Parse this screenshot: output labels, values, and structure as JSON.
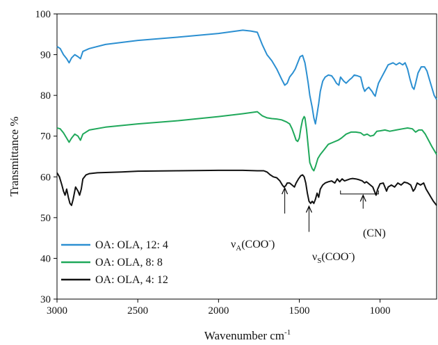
{
  "chart_data": {
    "type": "line",
    "title": "",
    "xlabel": "Wavenumber cm",
    "xlabel_superscript": "-1",
    "ylabel": "Transmittance %",
    "xlim": [
      3000,
      650
    ],
    "ylim": [
      30,
      100
    ],
    "x_ticks": [
      3000,
      2500,
      2000,
      1500,
      1000
    ],
    "y_ticks": [
      30,
      40,
      50,
      60,
      70,
      80,
      90,
      100
    ],
    "grid": false,
    "legend_position": "bottom-left",
    "series": [
      {
        "name": "OA: OLA, 12: 4",
        "color": "#2b8fd1",
        "points": [
          [
            3000,
            92
          ],
          [
            2980,
            91.5
          ],
          [
            2960,
            90
          ],
          [
            2940,
            89
          ],
          [
            2925,
            88
          ],
          [
            2910,
            89.2
          ],
          [
            2890,
            90
          ],
          [
            2870,
            89.5
          ],
          [
            2855,
            89
          ],
          [
            2840,
            90.8
          ],
          [
            2800,
            91.5
          ],
          [
            2700,
            92.5
          ],
          [
            2500,
            93.5
          ],
          [
            2250,
            94.3
          ],
          [
            2000,
            95.2
          ],
          [
            1850,
            96
          ],
          [
            1800,
            95.8
          ],
          [
            1760,
            95.5
          ],
          [
            1730,
            92.5
          ],
          [
            1700,
            90
          ],
          [
            1670,
            88.5
          ],
          [
            1640,
            86.5
          ],
          [
            1610,
            84
          ],
          [
            1590,
            82.5
          ],
          [
            1575,
            83
          ],
          [
            1560,
            84.5
          ],
          [
            1540,
            85.5
          ],
          [
            1525,
            86.5
          ],
          [
            1510,
            88
          ],
          [
            1495,
            89.5
          ],
          [
            1480,
            89.8
          ],
          [
            1465,
            88
          ],
          [
            1455,
            85.5
          ],
          [
            1445,
            83
          ],
          [
            1435,
            80
          ],
          [
            1420,
            77
          ],
          [
            1410,
            74.5
          ],
          [
            1400,
            73
          ],
          [
            1390,
            75.5
          ],
          [
            1380,
            78
          ],
          [
            1370,
            81
          ],
          [
            1355,
            83.5
          ],
          [
            1340,
            84.5
          ],
          [
            1320,
            85
          ],
          [
            1300,
            84.8
          ],
          [
            1285,
            84
          ],
          [
            1270,
            83
          ],
          [
            1255,
            82.5
          ],
          [
            1245,
            84.5
          ],
          [
            1235,
            84
          ],
          [
            1225,
            83.5
          ],
          [
            1210,
            83
          ],
          [
            1190,
            83.8
          ],
          [
            1175,
            84.3
          ],
          [
            1160,
            85
          ],
          [
            1140,
            84.8
          ],
          [
            1120,
            84.5
          ],
          [
            1105,
            82
          ],
          [
            1095,
            81
          ],
          [
            1085,
            81.5
          ],
          [
            1070,
            82
          ],
          [
            1060,
            81.5
          ],
          [
            1050,
            81
          ],
          [
            1040,
            80.3
          ],
          [
            1030,
            79.8
          ],
          [
            1020,
            81.5
          ],
          [
            1010,
            83
          ],
          [
            990,
            84.5
          ],
          [
            970,
            86
          ],
          [
            950,
            87.5
          ],
          [
            920,
            88
          ],
          [
            900,
            87.5
          ],
          [
            880,
            88
          ],
          [
            860,
            87.5
          ],
          [
            845,
            88
          ],
          [
            830,
            86.5
          ],
          [
            815,
            84
          ],
          [
            800,
            82
          ],
          [
            790,
            81.5
          ],
          [
            780,
            83
          ],
          [
            765,
            85.5
          ],
          [
            745,
            87
          ],
          [
            725,
            87
          ],
          [
            710,
            86
          ],
          [
            695,
            84
          ],
          [
            680,
            82
          ],
          [
            665,
            80
          ],
          [
            650,
            79
          ]
        ]
      },
      {
        "name": "OA: OLA, 8: 8",
        "color": "#1fa85a",
        "points": [
          [
            3000,
            72
          ],
          [
            2980,
            71.8
          ],
          [
            2960,
            70.8
          ],
          [
            2940,
            69.5
          ],
          [
            2925,
            68.5
          ],
          [
            2910,
            69.5
          ],
          [
            2890,
            70.5
          ],
          [
            2870,
            70
          ],
          [
            2855,
            69
          ],
          [
            2840,
            70.5
          ],
          [
            2800,
            71.5
          ],
          [
            2700,
            72.2
          ],
          [
            2500,
            73
          ],
          [
            2250,
            73.8
          ],
          [
            2000,
            74.8
          ],
          [
            1850,
            75.5
          ],
          [
            1760,
            76
          ],
          [
            1730,
            75
          ],
          [
            1700,
            74.5
          ],
          [
            1670,
            74.3
          ],
          [
            1640,
            74.2
          ],
          [
            1610,
            74
          ],
          [
            1580,
            73.5
          ],
          [
            1560,
            73
          ],
          [
            1545,
            71.8
          ],
          [
            1530,
            70.2
          ],
          [
            1520,
            69
          ],
          [
            1510,
            68.7
          ],
          [
            1500,
            69.5
          ],
          [
            1490,
            72
          ],
          [
            1480,
            74
          ],
          [
            1470,
            74.8
          ],
          [
            1465,
            74.5
          ],
          [
            1455,
            71.5
          ],
          [
            1445,
            67.5
          ],
          [
            1435,
            63.5
          ],
          [
            1420,
            62
          ],
          [
            1410,
            61.5
          ],
          [
            1400,
            62.5
          ],
          [
            1385,
            64.5
          ],
          [
            1370,
            65.5
          ],
          [
            1350,
            66.5
          ],
          [
            1320,
            68
          ],
          [
            1290,
            68.5
          ],
          [
            1260,
            69
          ],
          [
            1240,
            69.5
          ],
          [
            1210,
            70.5
          ],
          [
            1180,
            71
          ],
          [
            1150,
            71
          ],
          [
            1120,
            70.8
          ],
          [
            1100,
            70.2
          ],
          [
            1080,
            70.5
          ],
          [
            1060,
            70
          ],
          [
            1040,
            70.2
          ],
          [
            1020,
            71.2
          ],
          [
            1000,
            71.3
          ],
          [
            970,
            71.5
          ],
          [
            940,
            71.2
          ],
          [
            900,
            71.5
          ],
          [
            860,
            71.8
          ],
          [
            830,
            72
          ],
          [
            800,
            71.8
          ],
          [
            780,
            71
          ],
          [
            760,
            71.5
          ],
          [
            740,
            71.5
          ],
          [
            720,
            70.5
          ],
          [
            700,
            69
          ],
          [
            680,
            67.5
          ],
          [
            665,
            66.5
          ],
          [
            650,
            65.5
          ]
        ]
      },
      {
        "name": "OA: OLA, 4: 12",
        "color": "#111111",
        "points": [
          [
            3000,
            61
          ],
          [
            2985,
            60
          ],
          [
            2970,
            58
          ],
          [
            2960,
            56.5
          ],
          [
            2950,
            55.5
          ],
          [
            2940,
            57
          ],
          [
            2930,
            55
          ],
          [
            2920,
            53.5
          ],
          [
            2910,
            53
          ],
          [
            2900,
            54.5
          ],
          [
            2885,
            57.5
          ],
          [
            2870,
            56.5
          ],
          [
            2860,
            55.5
          ],
          [
            2850,
            57
          ],
          [
            2840,
            59.5
          ],
          [
            2820,
            60.5
          ],
          [
            2800,
            60.8
          ],
          [
            2750,
            61
          ],
          [
            2600,
            61.2
          ],
          [
            2500,
            61.4
          ],
          [
            2250,
            61.5
          ],
          [
            2000,
            61.6
          ],
          [
            1850,
            61.6
          ],
          [
            1760,
            61.5
          ],
          [
            1720,
            61.5
          ],
          [
            1700,
            61.2
          ],
          [
            1680,
            60.5
          ],
          [
            1660,
            60
          ],
          [
            1640,
            59.8
          ],
          [
            1620,
            59
          ],
          [
            1605,
            58
          ],
          [
            1595,
            57.5
          ],
          [
            1585,
            57.8
          ],
          [
            1575,
            58.5
          ],
          [
            1560,
            58.5
          ],
          [
            1545,
            58
          ],
          [
            1530,
            57.5
          ],
          [
            1520,
            58.5
          ],
          [
            1505,
            59.5
          ],
          [
            1490,
            60.3
          ],
          [
            1480,
            60.5
          ],
          [
            1470,
            60
          ],
          [
            1460,
            58.5
          ],
          [
            1450,
            56
          ],
          [
            1440,
            54
          ],
          [
            1430,
            53.5
          ],
          [
            1420,
            54
          ],
          [
            1410,
            53.5
          ],
          [
            1400,
            54.5
          ],
          [
            1390,
            56
          ],
          [
            1380,
            55
          ],
          [
            1370,
            57
          ],
          [
            1355,
            58
          ],
          [
            1340,
            58.5
          ],
          [
            1320,
            58.8
          ],
          [
            1300,
            59
          ],
          [
            1280,
            58.5
          ],
          [
            1265,
            59.5
          ],
          [
            1250,
            58.8
          ],
          [
            1235,
            59.5
          ],
          [
            1220,
            59
          ],
          [
            1200,
            59.3
          ],
          [
            1185,
            59.5
          ],
          [
            1170,
            59.6
          ],
          [
            1150,
            59.5
          ],
          [
            1130,
            59.3
          ],
          [
            1110,
            59
          ],
          [
            1095,
            58.5
          ],
          [
            1085,
            58.8
          ],
          [
            1075,
            58.5
          ],
          [
            1060,
            58
          ],
          [
            1045,
            57.5
          ],
          [
            1035,
            56.5
          ],
          [
            1025,
            55.5
          ],
          [
            1015,
            57
          ],
          [
            1000,
            58.3
          ],
          [
            980,
            58.5
          ],
          [
            960,
            56.5
          ],
          [
            950,
            57.5
          ],
          [
            930,
            58
          ],
          [
            910,
            57.5
          ],
          [
            890,
            58.5
          ],
          [
            870,
            58
          ],
          [
            850,
            58.7
          ],
          [
            830,
            58.5
          ],
          [
            810,
            58
          ],
          [
            795,
            56.5
          ],
          [
            785,
            57
          ],
          [
            770,
            58.5
          ],
          [
            750,
            58
          ],
          [
            730,
            58.5
          ],
          [
            715,
            57
          ],
          [
            700,
            56
          ],
          [
            685,
            55
          ],
          [
            670,
            54
          ],
          [
            650,
            53
          ]
        ]
      }
    ],
    "annotations": [
      {
        "id": "nua",
        "main": "ν",
        "sub": "A",
        "paren": "(COO",
        "sup": "-",
        "close": ")",
        "arrow_x": 1590,
        "arrow_from_y": 51,
        "arrow_to_y": 57.3
      },
      {
        "id": "nus",
        "main": "ν",
        "sub": "S",
        "paren": "(COO",
        "sup": "-",
        "close": ")",
        "arrow_x": 1440,
        "arrow_from_y": 46.5,
        "arrow_to_y": 52.8
      },
      {
        "id": "cn",
        "text": "(CN)",
        "bracket_x": [
          1245,
          1010
        ],
        "bracket_y": 55.8,
        "arrow_x": 1105,
        "arrow_from_y": 52.2,
        "arrow_to_y": 55.5
      }
    ]
  }
}
